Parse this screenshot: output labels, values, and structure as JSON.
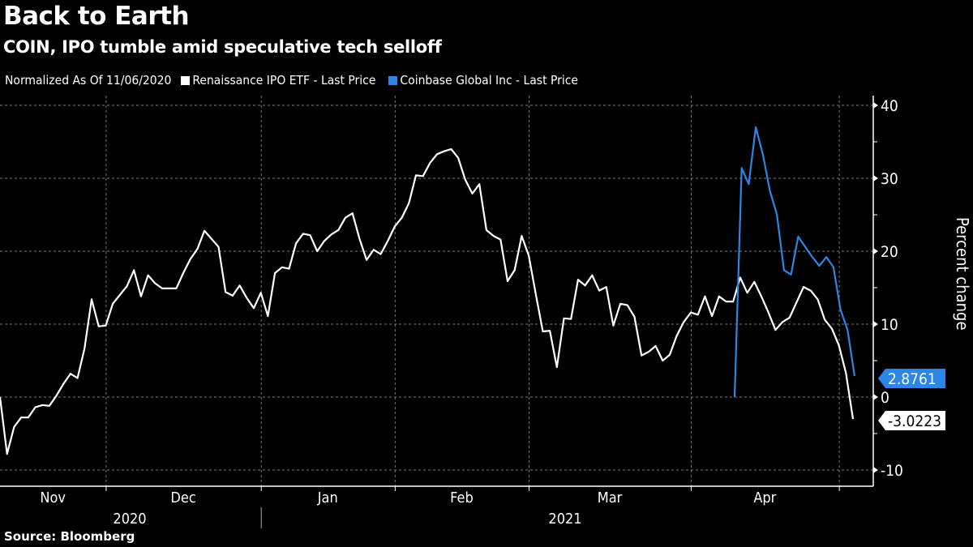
{
  "header": {
    "title": "Back to Earth",
    "subtitle": "COIN, IPO tumble amid speculative tech selloff"
  },
  "legend": {
    "note": "Normalized As Of 11/06/2020",
    "items": [
      {
        "label": "Renaissance IPO ETF - Last Price",
        "color": "#ffffff"
      },
      {
        "label": "Coinbase Global Inc - Last Price",
        "color": "#2b86e6"
      }
    ]
  },
  "footer": {
    "source": "Source: Bloomberg"
  },
  "chart_data": {
    "type": "line",
    "title": "Back to Earth",
    "subtitle": "COIN, IPO tumble amid speculative tech selloff",
    "xlabel": "",
    "ylabel": "Percent change",
    "ylim": [
      -12,
      41
    ],
    "yticks": [
      -10,
      0,
      10,
      20,
      30,
      40
    ],
    "ytick_labels": [
      "-10",
      "0",
      "10",
      "20",
      "30",
      "40"
    ],
    "y_minor_ticks": [
      -5,
      5,
      15,
      25,
      35
    ],
    "grid": true,
    "legend_position": "top-left",
    "x_unit": "trading days since 11/06/2020",
    "xlim": [
      0,
      124
    ],
    "month_ticks": [
      {
        "label": "Nov",
        "x": 0,
        "end": 15
      },
      {
        "label": "Dec",
        "x": 15,
        "end": 37
      },
      {
        "label": "Jan",
        "x": 37,
        "end": 56
      },
      {
        "label": "Feb",
        "x": 56,
        "end": 75
      },
      {
        "label": "Mar",
        "x": 75,
        "end": 98
      },
      {
        "label": "Apr",
        "x": 98,
        "end": 119
      },
      {
        "label": "",
        "x": 119,
        "end": 124
      }
    ],
    "year_labels": [
      {
        "label": "2020",
        "from": 0,
        "to": 37
      },
      {
        "label": "2021",
        "from": 37,
        "to": 124
      }
    ],
    "series": [
      {
        "name": "Renaissance IPO ETF - Last Price",
        "color": "#ffffff",
        "last_value_label": "-3.0223",
        "values": [
          0.0,
          -7.8,
          -4.1,
          -2.8,
          -2.8,
          -1.4,
          -1.1,
          -1.2,
          0.2,
          1.8,
          3.2,
          2.6,
          6.7,
          13.4,
          9.7,
          9.8,
          12.8,
          14.0,
          15.2,
          17.4,
          13.8,
          16.7,
          15.6,
          14.9,
          14.9,
          14.9,
          17.0,
          18.9,
          20.3,
          22.8,
          21.7,
          20.6,
          14.4,
          13.9,
          15.3,
          13.6,
          12.2,
          14.3,
          11.1,
          17.0,
          17.8,
          17.6,
          21.1,
          22.4,
          22.2,
          20.0,
          21.4,
          22.3,
          22.9,
          24.6,
          25.2,
          21.7,
          18.8,
          20.2,
          19.6,
          21.4,
          23.4,
          24.6,
          26.6,
          30.4,
          30.3,
          32.1,
          33.3,
          33.7,
          34.0,
          32.8,
          29.8,
          27.9,
          29.2,
          22.9,
          22.1,
          21.6,
          15.9,
          17.4,
          22.1,
          19.4,
          14.1,
          9.0,
          9.1,
          4.1,
          10.8,
          10.7,
          16.1,
          15.3,
          16.7,
          14.6,
          15.1,
          9.8,
          12.8,
          12.6,
          11.0,
          5.7,
          6.2,
          7.0,
          5.0,
          5.8,
          8.4,
          10.3,
          11.6,
          11.3,
          13.8,
          11.1,
          13.8,
          13.1,
          13.1,
          16.4,
          14.3,
          15.8,
          13.8,
          11.6,
          9.2,
          10.3,
          10.9,
          13.0,
          15.1,
          14.6,
          13.4,
          10.6,
          9.4,
          7.1,
          3.3,
          -3.0223
        ]
      },
      {
        "name": "Coinbase Global Inc - Last Price",
        "color": "#2b86e6",
        "start_index": 105,
        "last_value_label": "2.8761",
        "values": [
          0.0,
          31.4,
          29.2,
          37.0,
          33.3,
          28.3,
          25.0,
          17.4,
          16.8,
          22.0,
          20.6,
          19.2,
          18.0,
          19.2,
          17.8,
          12.0,
          9.2,
          2.8761
        ]
      }
    ]
  }
}
